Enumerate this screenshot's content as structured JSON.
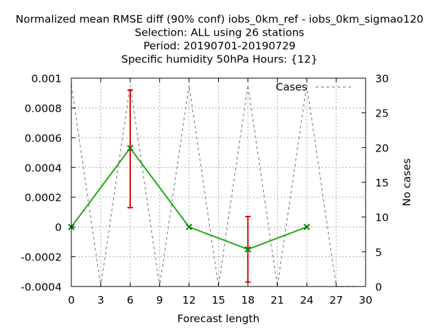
{
  "chart_data": {
    "type": "line",
    "title_lines": [
      "Normalized mean RMSE diff (90% conf) iobs_0km_ref - iobs_0km_sigmao120",
      "Selection: ALL using    26 stations",
      "Period: 20190701-20190729",
      "Specific humidity 50hPa   Hours: {12}"
    ],
    "xlabel": "Forecast length",
    "ylabel": "",
    "y2label": "No cases",
    "xlim": [
      0,
      30
    ],
    "ylim": [
      -0.0004,
      0.001
    ],
    "y2lim": [
      0,
      30
    ],
    "x_ticks": [
      "0",
      "3",
      "6",
      "9",
      "12",
      "15",
      "18",
      "21",
      "24",
      "27",
      "30"
    ],
    "y_ticks": [
      "-0.0004",
      "-0.0002",
      "0",
      "0.0002",
      "0.0004",
      "0.0006",
      "0.0008",
      "0.001"
    ],
    "y2_ticks": [
      "0",
      "5",
      "10",
      "15",
      "20",
      "25",
      "30"
    ],
    "grid": true,
    "legend": {
      "position": "top-right",
      "entries": [
        "Cases"
      ]
    },
    "series": [
      {
        "color": "#1aaa0c",
        "x": [
          0,
          6,
          12,
          18,
          24
        ],
        "y": [
          0,
          0.00053,
          0,
          -0.00015,
          0
        ],
        "error_low": [
          0,
          0.00013,
          0,
          -0.00037,
          0
        ],
        "error_high": [
          0,
          0.00092,
          0,
          7e-05,
          0
        ],
        "error_color": "#d40000"
      },
      {
        "name": "Cases",
        "axis": "y2",
        "color": "#999999",
        "dashed": true,
        "x": [
          0,
          3,
          6,
          9,
          12,
          15,
          18,
          21,
          24,
          27,
          29
        ],
        "y": [
          29,
          0,
          29,
          0,
          29,
          0,
          29,
          0,
          29,
          0,
          0
        ]
      }
    ]
  }
}
